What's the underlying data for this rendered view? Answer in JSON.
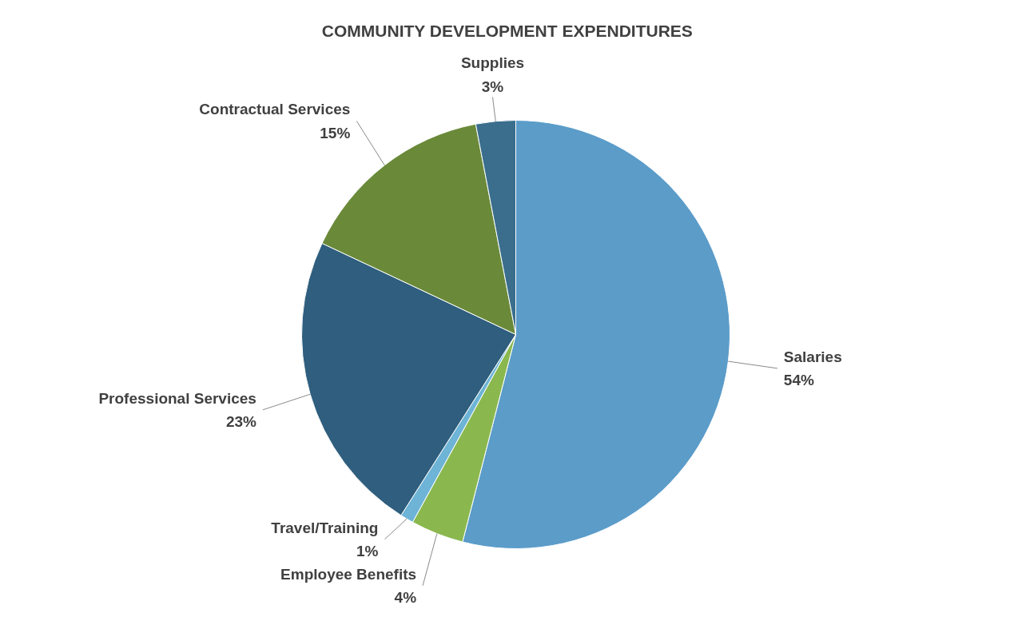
{
  "chart_data": {
    "type": "pie",
    "title": "COMMUNITY DEVELOPMENT EXPENDITURES",
    "categories": [
      "Salaries",
      "Employee Benefits",
      "Travel/Training",
      "Professional Services",
      "Contractual Services",
      "Supplies"
    ],
    "values": [
      54,
      4,
      1,
      23,
      15,
      3
    ],
    "value_labels": [
      "54%",
      "4%",
      "1%",
      "23%",
      "15%",
      "3%"
    ],
    "colors": [
      "#5b9cc9",
      "#8ab84f",
      "#6db4d6",
      "#2f5e7e",
      "#6a8a3a",
      "#3a6e8c"
    ]
  }
}
